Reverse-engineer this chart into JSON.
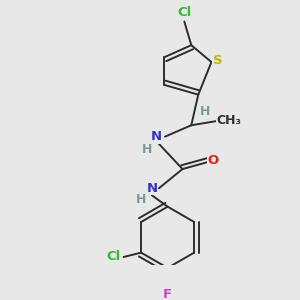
{
  "background_color": "#e8e8e8",
  "bond_color": "#2d2d2d",
  "atom_colors": {
    "C": "#2d2d2d",
    "H": "#7a9a9a",
    "N": "#3333cc",
    "O": "#dd2222",
    "S": "#bbbb00",
    "Cl": "#33bb33",
    "F": "#cc44cc"
  },
  "figsize": [
    3.0,
    3.0
  ],
  "dpi": 100,
  "lw": 1.4,
  "fs": 9.5
}
